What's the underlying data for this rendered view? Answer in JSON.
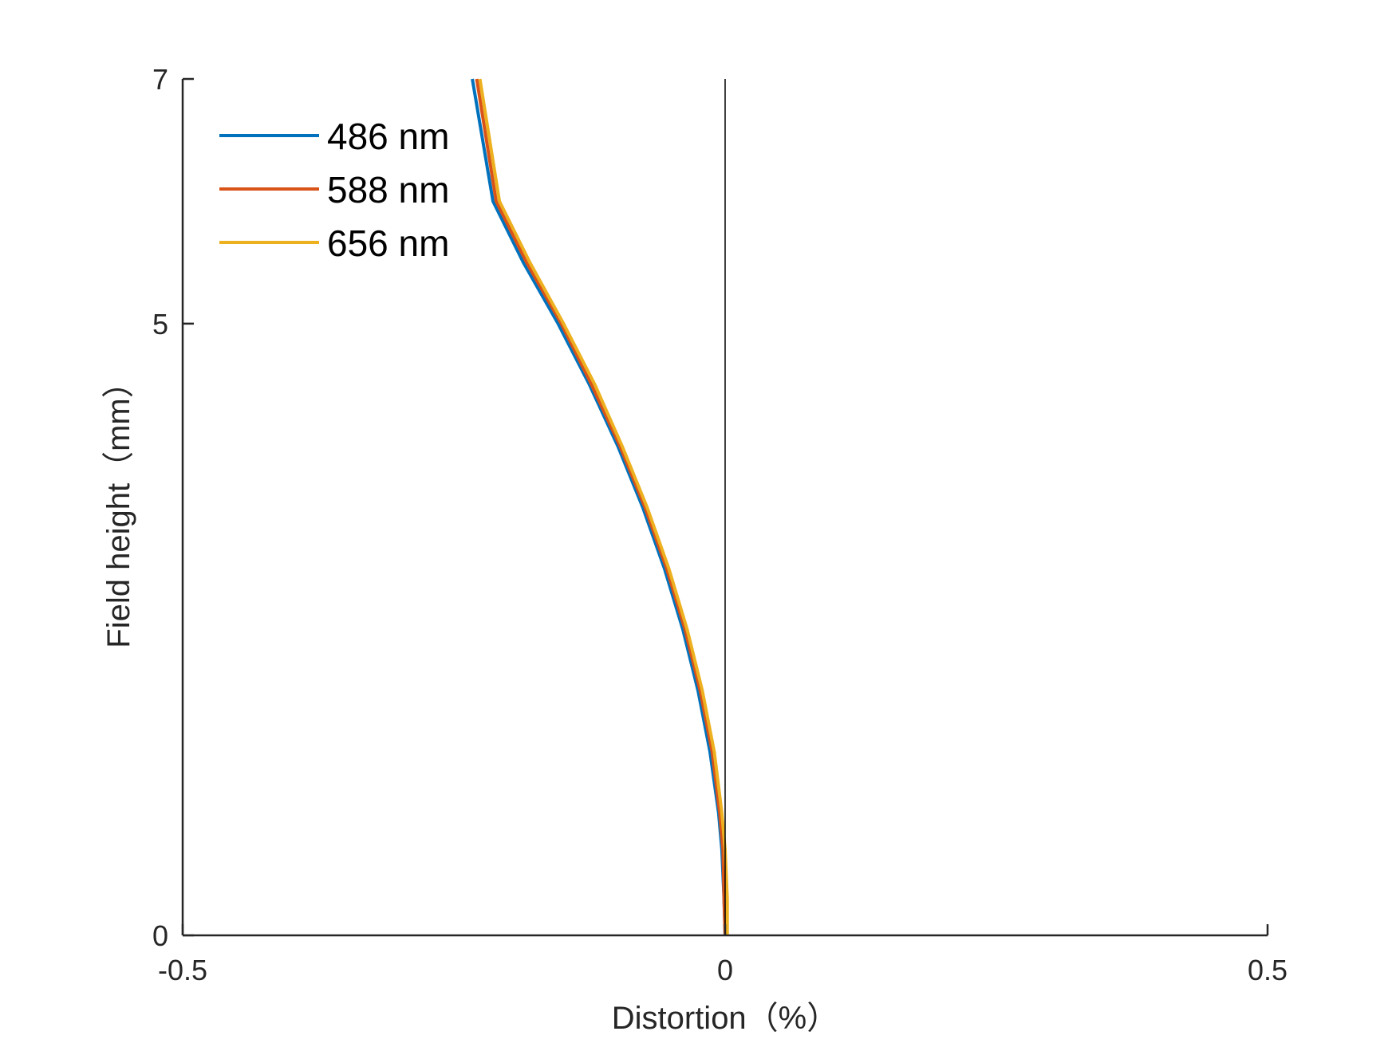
{
  "chart_data": {
    "type": "line",
    "title": "",
    "xlabel": "Distortion（%）",
    "ylabel": "Field height（mm）",
    "xlim": [
      -0.5,
      0.5
    ],
    "ylim": [
      0,
      7
    ],
    "xticks": [
      -0.5,
      0,
      0.5
    ],
    "xtick_labels": [
      "-0.5",
      "0",
      "0.5"
    ],
    "yticks": [
      0,
      5,
      7
    ],
    "ytick_labels": [
      "0",
      "5",
      "7"
    ],
    "grid": false,
    "legend_position": "top-left",
    "reference_line": {
      "x": 0,
      "color": "#000000"
    },
    "series": [
      {
        "name": "486 nm",
        "color": "#0072BD",
        "points": [
          [
            0,
            0
          ],
          [
            -0.001,
            0.3
          ],
          [
            -0.003,
            0.7
          ],
          [
            -0.006,
            1.0
          ],
          [
            -0.014,
            1.5
          ],
          [
            -0.025,
            2.0
          ],
          [
            -0.039,
            2.5
          ],
          [
            -0.056,
            3.0
          ],
          [
            -0.076,
            3.5
          ],
          [
            -0.099,
            4.0
          ],
          [
            -0.125,
            4.5
          ],
          [
            -0.154,
            5.0
          ],
          [
            -0.186,
            5.5
          ],
          [
            -0.214,
            6.0
          ],
          [
            -0.233,
            7.0
          ]
        ]
      },
      {
        "name": "588 nm",
        "color": "#D95319",
        "points": [
          [
            0,
            0
          ],
          [
            -0.001,
            0.3
          ],
          [
            -0.002,
            0.7
          ],
          [
            -0.005,
            1.0
          ],
          [
            -0.012,
            1.5
          ],
          [
            -0.023,
            2.0
          ],
          [
            -0.037,
            2.5
          ],
          [
            -0.054,
            3.0
          ],
          [
            -0.074,
            3.5
          ],
          [
            -0.097,
            4.0
          ],
          [
            -0.123,
            4.5
          ],
          [
            -0.151,
            5.0
          ],
          [
            -0.183,
            5.5
          ],
          [
            -0.211,
            6.0
          ],
          [
            -0.229,
            7.0
          ]
        ]
      },
      {
        "name": "656 nm",
        "color": "#EDB120",
        "points": [
          [
            0.002,
            0
          ],
          [
            0.002,
            0.3
          ],
          [
            0.0,
            0.7
          ],
          [
            -0.003,
            1.0
          ],
          [
            -0.01,
            1.5
          ],
          [
            -0.021,
            2.0
          ],
          [
            -0.035,
            2.5
          ],
          [
            -0.052,
            3.0
          ],
          [
            -0.072,
            3.5
          ],
          [
            -0.095,
            4.0
          ],
          [
            -0.12,
            4.5
          ],
          [
            -0.149,
            5.0
          ],
          [
            -0.18,
            5.5
          ],
          [
            -0.208,
            6.0
          ],
          [
            -0.226,
            7.0
          ]
        ]
      }
    ]
  }
}
